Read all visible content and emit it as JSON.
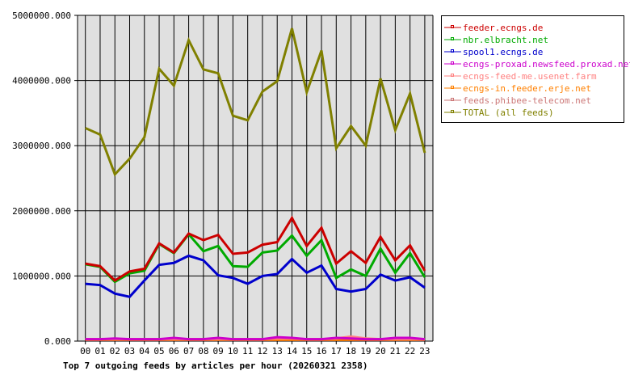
{
  "chart_data": {
    "type": "line",
    "title": "Top 7 outgoing feeds by articles per hour (20260321 2358)",
    "xlabel": "",
    "ylabel": "",
    "categories": [
      "00",
      "01",
      "02",
      "03",
      "04",
      "05",
      "06",
      "07",
      "08",
      "09",
      "10",
      "11",
      "12",
      "13",
      "14",
      "15",
      "16",
      "17",
      "18",
      "19",
      "20",
      "21",
      "22",
      "23"
    ],
    "ylim": [
      0,
      5000000
    ],
    "yticks": [
      "0.000",
      "1000000.000",
      "2000000.000",
      "3000000.000",
      "4000000.000",
      "5000000.000"
    ],
    "grid": true,
    "legend_position": "right",
    "background": "#e0e0e0",
    "series": [
      {
        "name": "feeder.ecngs.de",
        "color": "#cc0000",
        "values": [
          1190000,
          1150000,
          930000,
          1070000,
          1110000,
          1500000,
          1360000,
          1650000,
          1550000,
          1630000,
          1340000,
          1360000,
          1480000,
          1520000,
          1890000,
          1460000,
          1740000,
          1190000,
          1380000,
          1200000,
          1600000,
          1240000,
          1470000,
          1080000
        ]
      },
      {
        "name": "nbr.elbracht.net",
        "color": "#00aa00",
        "values": [
          1180000,
          1140000,
          910000,
          1040000,
          1080000,
          1490000,
          1350000,
          1640000,
          1380000,
          1460000,
          1150000,
          1140000,
          1360000,
          1390000,
          1620000,
          1310000,
          1550000,
          970000,
          1100000,
          1000000,
          1420000,
          1050000,
          1350000,
          980000
        ]
      },
      {
        "name": "spool1.ecngs.de",
        "color": "#0000cc",
        "values": [
          880000,
          860000,
          730000,
          680000,
          930000,
          1170000,
          1200000,
          1310000,
          1240000,
          1010000,
          970000,
          880000,
          1000000,
          1030000,
          1260000,
          1050000,
          1160000,
          800000,
          760000,
          800000,
          1020000,
          930000,
          980000,
          820000
        ]
      },
      {
        "name": "ecngs-proxad.newsfeed.proxad.net",
        "color": "#cc00cc",
        "values": [
          30000,
          30000,
          40000,
          30000,
          30000,
          30000,
          50000,
          30000,
          30000,
          50000,
          30000,
          30000,
          30000,
          60000,
          50000,
          30000,
          30000,
          50000,
          40000,
          30000,
          30000,
          50000,
          50000,
          30000
        ]
      },
      {
        "name": "ecngs-feed-me.usenet.farm",
        "color": "#ff8080",
        "values": [
          30000,
          30000,
          30000,
          30000,
          30000,
          30000,
          30000,
          30000,
          30000,
          30000,
          30000,
          30000,
          30000,
          40000,
          40000,
          30000,
          30000,
          40000,
          70000,
          40000,
          30000,
          30000,
          30000,
          30000
        ]
      },
      {
        "name": "ecngs-in.feeder.erje.net",
        "color": "#ff8000",
        "values": [
          20000,
          20000,
          20000,
          20000,
          20000,
          20000,
          20000,
          20000,
          20000,
          20000,
          20000,
          20000,
          20000,
          20000,
          20000,
          20000,
          20000,
          20000,
          20000,
          20000,
          20000,
          20000,
          20000,
          20000
        ]
      },
      {
        "name": "feeds.phibee-telecom.net",
        "color": "#cc7777",
        "values": [
          30000,
          30000,
          30000,
          30000,
          30000,
          30000,
          30000,
          30000,
          30000,
          30000,
          30000,
          30000,
          30000,
          30000,
          30000,
          30000,
          30000,
          30000,
          30000,
          30000,
          30000,
          30000,
          30000,
          30000
        ]
      },
      {
        "name": "TOTAL (all feeds)",
        "color": "#808000",
        "values": [
          3270000,
          3170000,
          2560000,
          2800000,
          3130000,
          4180000,
          3920000,
          4620000,
          4170000,
          4110000,
          3460000,
          3390000,
          3830000,
          3990000,
          4800000,
          3820000,
          4460000,
          2960000,
          3300000,
          3000000,
          4030000,
          3240000,
          3800000,
          2890000
        ]
      }
    ]
  }
}
